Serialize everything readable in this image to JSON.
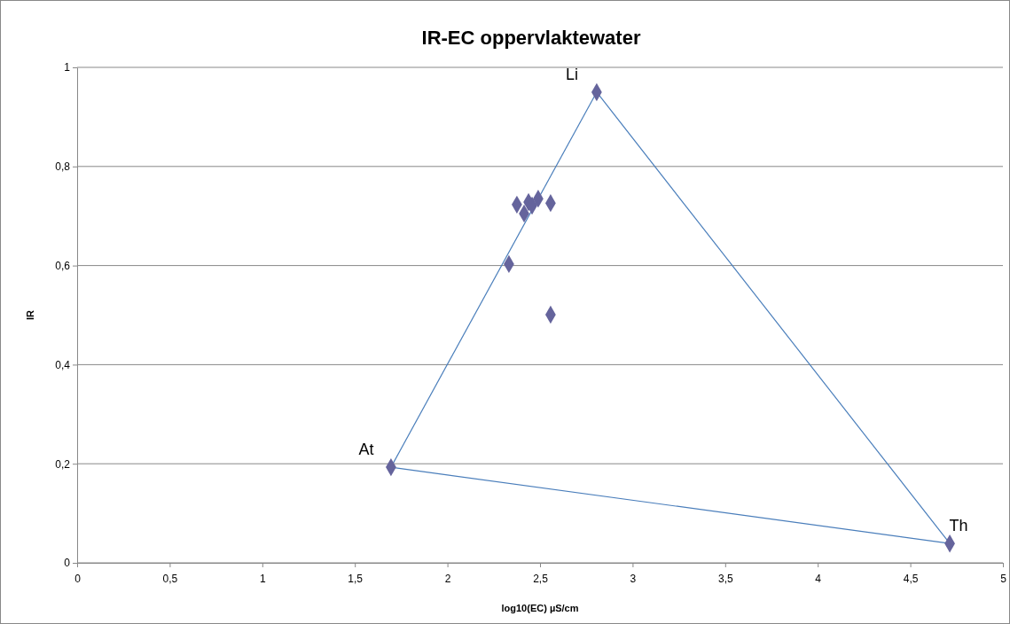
{
  "chart_data": {
    "type": "scatter",
    "title": "IR-EC oppervlaktewater",
    "xlabel": "log10(EC) µS/cm",
    "ylabel": "IR",
    "xlim": [
      0,
      5
    ],
    "xticks": [
      0,
      {
        "value": 0.5,
        "label": "0,5"
      },
      1,
      {
        "value": 1.5,
        "label": "1,5"
      },
      2,
      {
        "value": 2.5,
        "label": "2,5"
      },
      3,
      {
        "value": 3.5,
        "label": "3,5"
      },
      4,
      {
        "value": 4.5,
        "label": "4,5"
      },
      5
    ],
    "ylim": [
      0,
      1
    ],
    "yticks": [
      0,
      {
        "value": 0.2,
        "label": "0,2"
      },
      {
        "value": 0.4,
        "label": "0,4"
      },
      {
        "value": 0.6,
        "label": "0,6"
      },
      {
        "value": 0.8,
        "label": "0,8"
      },
      1
    ],
    "grid": "y",
    "series": [
      {
        "type": "line",
        "color": "#4a7ebb",
        "marker": "none",
        "x": [
          1.695,
          2.806
        ],
        "values": [
          0.193,
          0.95
        ]
      },
      {
        "type": "line",
        "color": "#4a7ebb",
        "marker": "none",
        "x": [
          2.806,
          4.713
        ],
        "values": [
          0.95,
          0.039
        ]
      },
      {
        "type": "line",
        "color": "#4a7ebb",
        "marker": "none",
        "x": [
          1.695,
          4.713
        ],
        "values": [
          0.193,
          0.039
        ]
      },
      {
        "color": "#65649c",
        "marker": "diamond",
        "x": [
          1.695,
          2.806,
          4.713,
          2.375,
          2.414,
          2.438,
          2.457,
          2.49,
          2.557,
          2.332,
          2.557
        ],
        "values": [
          0.193,
          0.95,
          0.039,
          0.723,
          0.705,
          0.728,
          0.721,
          0.735,
          0.726,
          0.603,
          0.501
        ]
      }
    ],
    "annotations": [
      {
        "text": "At",
        "x": 1.695,
        "y": 0.193
      },
      {
        "text": "Li",
        "x": 2.806,
        "y": 0.95
      },
      {
        "text": "Th",
        "x": 4.713,
        "y": 0.039
      }
    ]
  }
}
